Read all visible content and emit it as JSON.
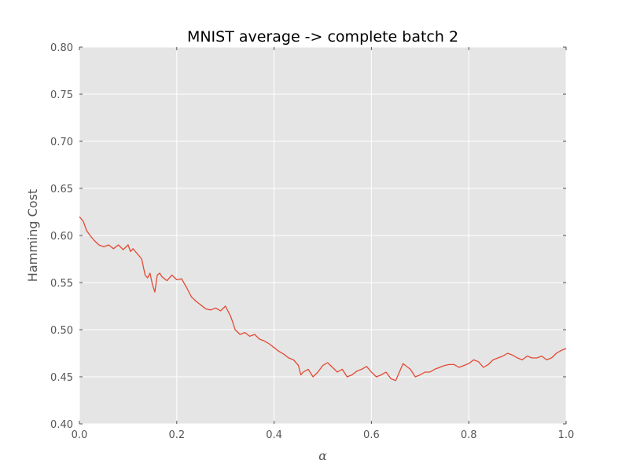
{
  "chart_data": {
    "type": "line",
    "title": "MNIST average -> complete batch 2",
    "xlabel": "α",
    "ylabel": "Hamming Cost",
    "xlim": [
      0.0,
      1.0
    ],
    "ylim": [
      0.4,
      0.8
    ],
    "xticks": [
      0.0,
      0.2,
      0.4,
      0.6,
      0.8,
      1.0
    ],
    "xtick_labels": [
      "0.0",
      "0.2",
      "0.4",
      "0.6",
      "0.8",
      "1.0"
    ],
    "yticks": [
      0.4,
      0.45,
      0.5,
      0.55,
      0.6,
      0.65,
      0.7,
      0.75,
      0.8
    ],
    "ytick_labels": [
      "0.40",
      "0.45",
      "0.50",
      "0.55",
      "0.60",
      "0.65",
      "0.70",
      "0.75",
      "0.80"
    ],
    "grid": true,
    "colors": {
      "background": "#e5e5e5",
      "grid": "#ffffff",
      "line": "#e24a33"
    },
    "series": [
      {
        "name": "Hamming Cost",
        "x": [
          0.0,
          0.008,
          0.015,
          0.022,
          0.03,
          0.04,
          0.05,
          0.06,
          0.07,
          0.08,
          0.09,
          0.1,
          0.105,
          0.11,
          0.12,
          0.128,
          0.135,
          0.14,
          0.145,
          0.15,
          0.155,
          0.16,
          0.165,
          0.17,
          0.18,
          0.19,
          0.2,
          0.21,
          0.22,
          0.225,
          0.23,
          0.24,
          0.25,
          0.26,
          0.27,
          0.28,
          0.29,
          0.3,
          0.31,
          0.315,
          0.32,
          0.33,
          0.34,
          0.35,
          0.36,
          0.37,
          0.38,
          0.39,
          0.4,
          0.41,
          0.42,
          0.43,
          0.44,
          0.45,
          0.455,
          0.46,
          0.47,
          0.48,
          0.49,
          0.5,
          0.51,
          0.52,
          0.53,
          0.54,
          0.55,
          0.56,
          0.57,
          0.58,
          0.59,
          0.6,
          0.61,
          0.62,
          0.63,
          0.64,
          0.65,
          0.66,
          0.665,
          0.67,
          0.68,
          0.69,
          0.7,
          0.71,
          0.72,
          0.73,
          0.74,
          0.75,
          0.76,
          0.77,
          0.78,
          0.79,
          0.8,
          0.81,
          0.82,
          0.83,
          0.84,
          0.85,
          0.86,
          0.87,
          0.88,
          0.89,
          0.9,
          0.91,
          0.92,
          0.93,
          0.94,
          0.95,
          0.96,
          0.97,
          0.98,
          0.99,
          1.0
        ],
        "y": [
          0.62,
          0.615,
          0.605,
          0.6,
          0.595,
          0.59,
          0.588,
          0.59,
          0.586,
          0.59,
          0.585,
          0.59,
          0.583,
          0.586,
          0.58,
          0.575,
          0.558,
          0.555,
          0.56,
          0.548,
          0.54,
          0.558,
          0.56,
          0.556,
          0.552,
          0.558,
          0.553,
          0.554,
          0.545,
          0.54,
          0.535,
          0.53,
          0.526,
          0.522,
          0.521,
          0.523,
          0.52,
          0.525,
          0.515,
          0.508,
          0.5,
          0.495,
          0.497,
          0.493,
          0.495,
          0.49,
          0.488,
          0.485,
          0.481,
          0.477,
          0.474,
          0.47,
          0.468,
          0.462,
          0.452,
          0.455,
          0.458,
          0.45,
          0.455,
          0.462,
          0.465,
          0.46,
          0.455,
          0.458,
          0.45,
          0.452,
          0.456,
          0.458,
          0.461,
          0.455,
          0.45,
          0.452,
          0.455,
          0.448,
          0.446,
          0.458,
          0.464,
          0.462,
          0.458,
          0.45,
          0.452,
          0.455,
          0.455,
          0.458,
          0.46,
          0.462,
          0.463,
          0.463,
          0.46,
          0.462,
          0.464,
          0.468,
          0.466,
          0.46,
          0.463,
          0.468,
          0.47,
          0.472,
          0.475,
          0.473,
          0.47,
          0.468,
          0.472,
          0.47,
          0.47,
          0.472,
          0.468,
          0.47,
          0.475,
          0.478,
          0.48
        ]
      }
    ]
  }
}
